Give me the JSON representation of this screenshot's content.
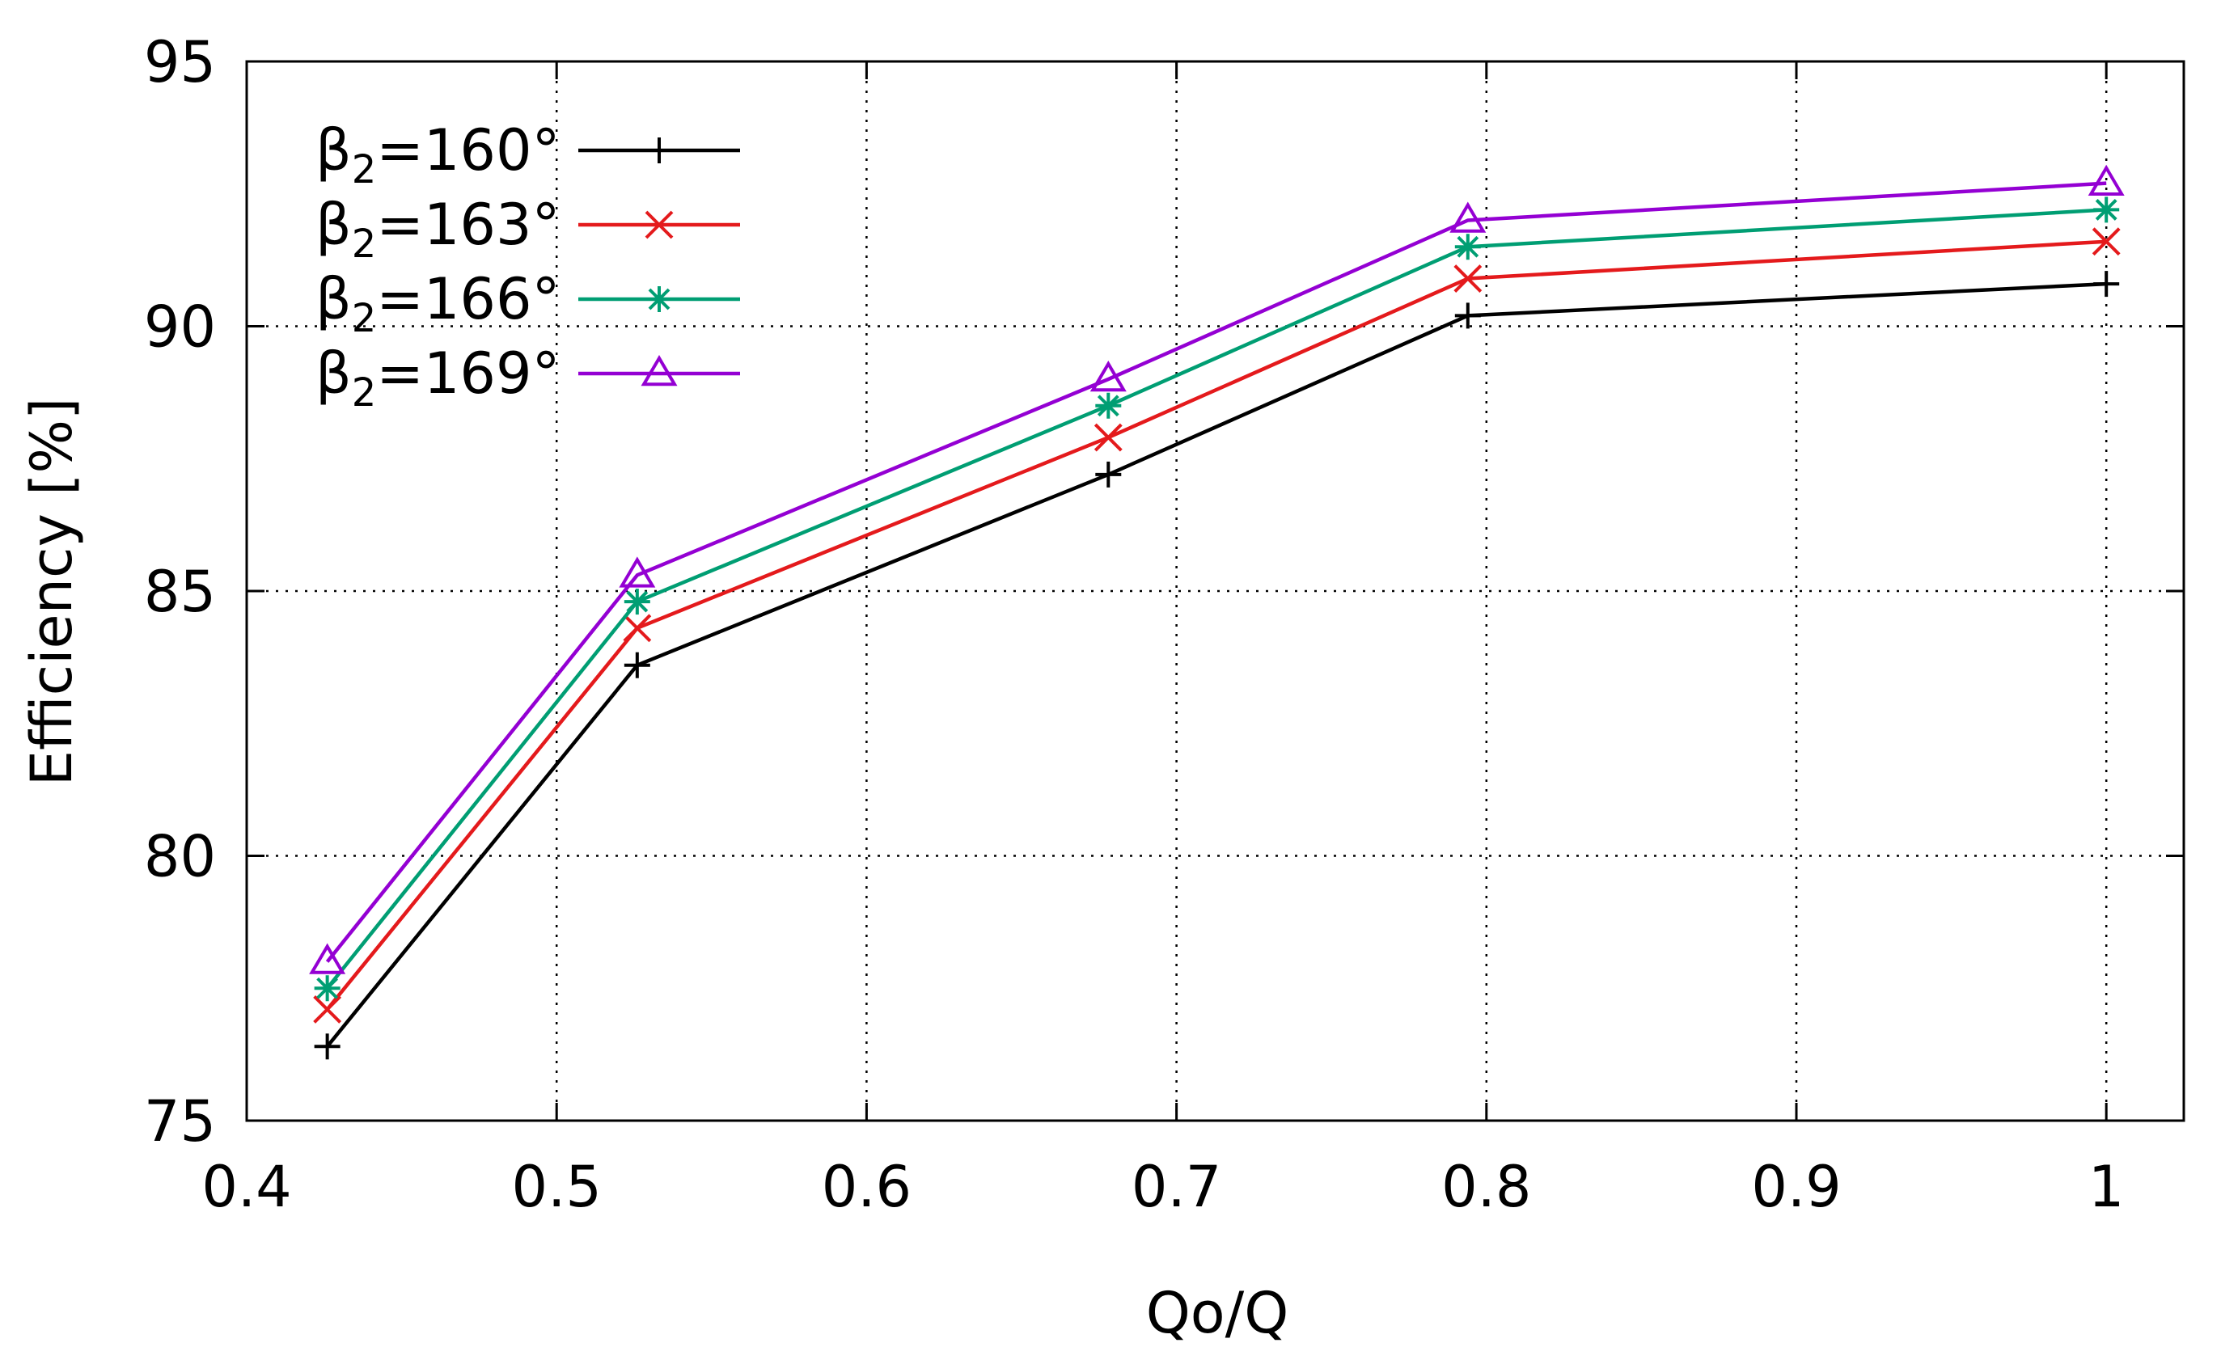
{
  "chart_data": {
    "type": "line",
    "title": "",
    "xlabel": "Qo/Q",
    "ylabel": "Efficiency [%]",
    "xlim": [
      0.4,
      1.025
    ],
    "ylim": [
      75,
      95
    ],
    "xticks": [
      "0.4",
      "0.5",
      "0.6",
      "0.7",
      "0.8",
      "0.9",
      "1"
    ],
    "xtick_values": [
      0.4,
      0.5,
      0.6,
      0.7,
      0.8,
      0.9,
      1.0
    ],
    "yticks": [
      "75",
      "80",
      "85",
      "90",
      "95"
    ],
    "ytick_values": [
      75,
      80,
      85,
      90,
      95
    ],
    "grid": true,
    "legend_position": "top-left",
    "x": [
      0.426,
      0.526,
      0.678,
      0.794,
      1.0
    ],
    "series": [
      {
        "name": "β₂=160°",
        "label_main": "β",
        "label_sub": "2",
        "label_rest": "=160°",
        "color": "#000000",
        "marker": "plus",
        "values": [
          76.4,
          83.6,
          87.2,
          90.2,
          90.8
        ]
      },
      {
        "name": "β₂=163°",
        "label_main": "β",
        "label_sub": "2",
        "label_rest": "=163°",
        "color": "#e41a1c",
        "marker": "cross",
        "values": [
          77.1,
          84.3,
          87.9,
          90.9,
          91.6
        ]
      },
      {
        "name": "β₂=166°",
        "label_main": "β",
        "label_sub": "2",
        "label_rest": "=166°",
        "color": "#009e73",
        "marker": "star",
        "values": [
          77.5,
          84.8,
          88.5,
          91.5,
          92.2
        ]
      },
      {
        "name": "β₂=169°",
        "label_main": "β",
        "label_sub": "2",
        "label_rest": "=169°",
        "color": "#9400d3",
        "marker": "triangle",
        "values": [
          78.0,
          85.3,
          89.0,
          92.0,
          92.7
        ]
      }
    ]
  }
}
